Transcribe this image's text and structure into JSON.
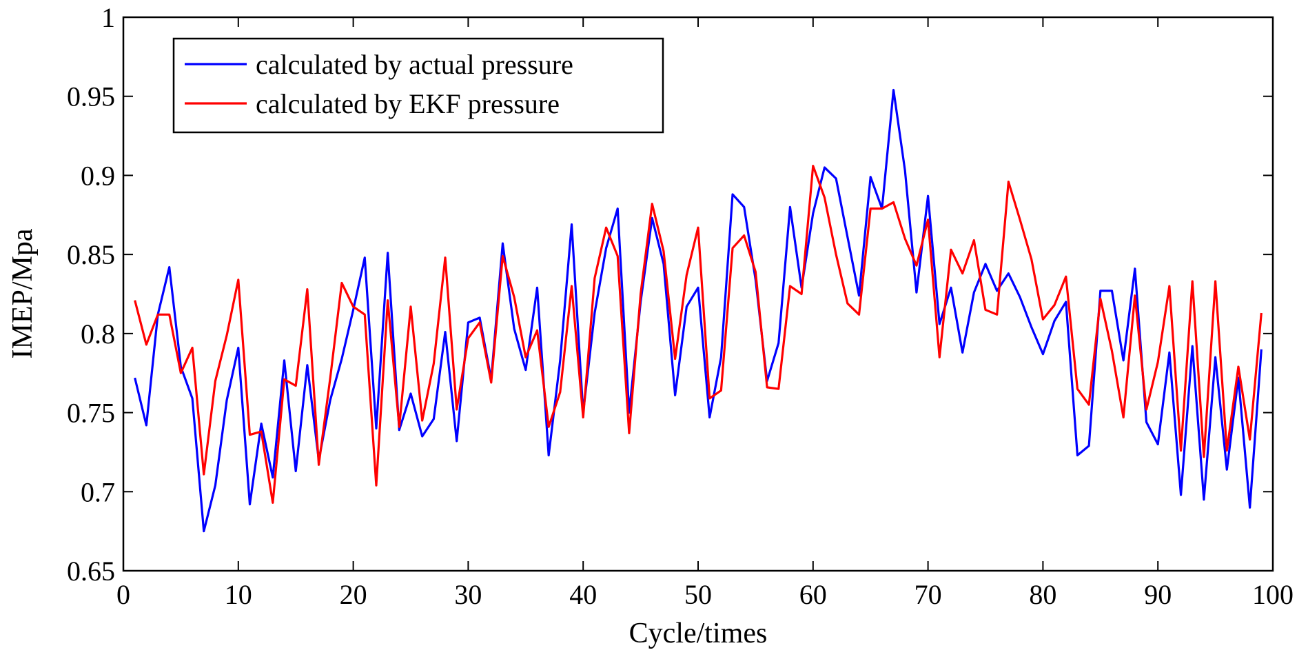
{
  "chart_data": {
    "type": "line",
    "title": "",
    "xlabel": "Cycle/times",
    "ylabel": "IMEP/Mpa",
    "xlim": [
      0,
      100
    ],
    "ylim": [
      0.65,
      1
    ],
    "x_ticks": [
      0,
      10,
      20,
      30,
      40,
      50,
      60,
      70,
      80,
      90,
      100
    ],
    "x_tick_labels": [
      "0",
      "10",
      "20",
      "30",
      "40",
      "50",
      "60",
      "70",
      "80",
      "90",
      "100"
    ],
    "y_ticks": [
      0.65,
      0.7,
      0.75,
      0.8,
      0.85,
      0.9,
      0.95,
      1
    ],
    "y_tick_labels": [
      "0.65",
      "0.7",
      "0.75",
      "0.8",
      "0.85",
      "0.9",
      "0.95",
      "1"
    ],
    "grid": false,
    "legend_position": "top-left",
    "x": [
      1,
      2,
      3,
      4,
      5,
      6,
      7,
      8,
      9,
      10,
      11,
      12,
      13,
      14,
      15,
      16,
      17,
      18,
      19,
      20,
      21,
      22,
      23,
      24,
      25,
      26,
      27,
      28,
      29,
      30,
      31,
      32,
      33,
      34,
      35,
      36,
      37,
      38,
      39,
      40,
      41,
      42,
      43,
      44,
      45,
      46,
      47,
      48,
      49,
      50,
      51,
      52,
      53,
      54,
      55,
      56,
      57,
      58,
      59,
      60,
      61,
      62,
      63,
      64,
      65,
      66,
      67,
      68,
      69,
      70,
      71,
      72,
      73,
      74,
      75,
      76,
      77,
      78,
      79,
      80,
      81,
      82,
      83,
      84,
      85,
      86,
      87,
      88,
      89,
      90,
      91,
      92,
      93,
      94,
      95,
      96,
      97,
      98,
      99
    ],
    "series": [
      {
        "name": "calculated by actual pressure",
        "color": "#0000ff",
        "values": [
          0.772,
          0.742,
          0.812,
          0.842,
          0.779,
          0.759,
          0.675,
          0.704,
          0.758,
          0.791,
          0.692,
          0.743,
          0.709,
          0.783,
          0.713,
          0.78,
          0.72,
          0.758,
          0.784,
          0.815,
          0.848,
          0.74,
          0.851,
          0.739,
          0.762,
          0.735,
          0.746,
          0.801,
          0.732,
          0.807,
          0.81,
          0.771,
          0.857,
          0.803,
          0.777,
          0.829,
          0.723,
          0.783,
          0.869,
          0.75,
          0.813,
          0.854,
          0.879,
          0.75,
          0.82,
          0.873,
          0.844,
          0.761,
          0.817,
          0.829,
          0.747,
          0.785,
          0.888,
          0.88,
          0.834,
          0.77,
          0.794,
          0.88,
          0.829,
          0.876,
          0.905,
          0.898,
          0.861,
          0.824,
          0.899,
          0.879,
          0.954,
          0.903,
          0.826,
          0.887,
          0.806,
          0.829,
          0.788,
          0.826,
          0.844,
          0.827,
          0.838,
          0.823,
          0.804,
          0.787,
          0.808,
          0.82,
          0.723,
          0.729,
          0.827,
          0.827,
          0.783,
          0.841,
          0.744,
          0.73,
          0.788,
          0.698,
          0.792,
          0.695,
          0.785,
          0.714,
          0.772,
          0.69,
          0.79
        ]
      },
      {
        "name": "calculated by EKF pressure",
        "color": "#ff0000",
        "values": [
          0.821,
          0.793,
          0.812,
          0.812,
          0.775,
          0.791,
          0.711,
          0.77,
          0.799,
          0.834,
          0.736,
          0.738,
          0.693,
          0.771,
          0.767,
          0.828,
          0.717,
          0.772,
          0.832,
          0.817,
          0.812,
          0.704,
          0.821,
          0.741,
          0.817,
          0.745,
          0.781,
          0.848,
          0.752,
          0.797,
          0.807,
          0.769,
          0.849,
          0.823,
          0.785,
          0.802,
          0.741,
          0.763,
          0.83,
          0.747,
          0.835,
          0.867,
          0.849,
          0.737,
          0.825,
          0.882,
          0.852,
          0.784,
          0.837,
          0.867,
          0.759,
          0.764,
          0.854,
          0.862,
          0.839,
          0.766,
          0.765,
          0.83,
          0.825,
          0.906,
          0.886,
          0.85,
          0.819,
          0.812,
          0.879,
          0.879,
          0.883,
          0.86,
          0.843,
          0.872,
          0.785,
          0.853,
          0.838,
          0.859,
          0.815,
          0.812,
          0.896,
          0.872,
          0.847,
          0.809,
          0.818,
          0.836,
          0.765,
          0.755,
          0.822,
          0.789,
          0.747,
          0.824,
          0.752,
          0.782,
          0.83,
          0.726,
          0.833,
          0.722,
          0.833,
          0.726,
          0.779,
          0.733,
          0.813
        ]
      }
    ]
  }
}
